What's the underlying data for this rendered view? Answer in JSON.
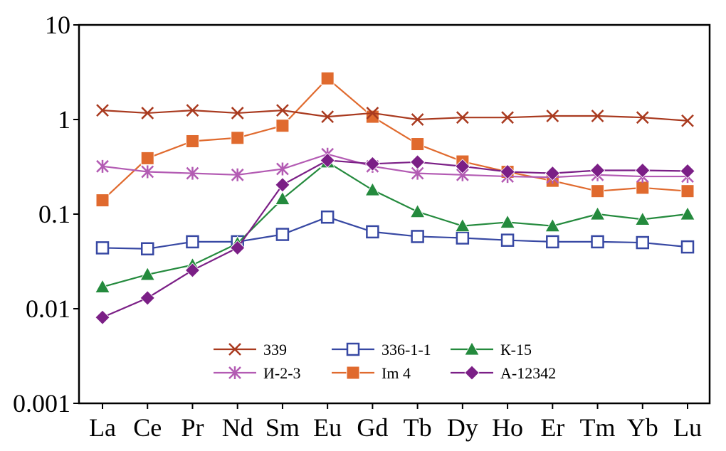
{
  "chart_data": {
    "type": "line",
    "title": "",
    "xlabel": "",
    "ylabel": "",
    "yscale": "log",
    "ylim": [
      0.001,
      10
    ],
    "grid": false,
    "legend_position": "bottom-center",
    "yticks": [
      10,
      1,
      0.1,
      0.01,
      0.001
    ],
    "ytick_labels": [
      "10",
      "1",
      "0.1",
      "0.01",
      "0.001"
    ],
    "categories": [
      "La",
      "Ce",
      "Pr",
      "Nd",
      "Sm",
      "Eu",
      "Gd",
      "Tb",
      "Dy",
      "Ho",
      "Er",
      "Tm",
      "Yb",
      "Lu"
    ],
    "series": [
      {
        "name": "339",
        "marker": "x",
        "color": "#a93a1f",
        "values": [
          1.25,
          1.17,
          1.25,
          1.17,
          1.25,
          1.07,
          1.17,
          1.0,
          1.05,
          1.05,
          1.09,
          1.09,
          1.05,
          0.97
        ]
      },
      {
        "name": "336-1-1",
        "marker": "open-square",
        "color": "#3748a3",
        "values": [
          0.044,
          0.043,
          0.051,
          0.051,
          0.061,
          0.093,
          0.065,
          0.058,
          0.056,
          0.053,
          0.051,
          0.051,
          0.05,
          0.045
        ]
      },
      {
        "name": "К-15",
        "marker": "triangle",
        "color": "#248a3d",
        "values": [
          0.017,
          0.023,
          0.029,
          0.049,
          0.145,
          0.355,
          0.18,
          0.106,
          0.075,
          0.082,
          0.075,
          0.1,
          0.088,
          0.1
        ]
      },
      {
        "name": "И-2-3",
        "marker": "asterisk",
        "color": "#b35bb3",
        "values": [
          0.32,
          0.28,
          0.27,
          0.26,
          0.3,
          0.43,
          0.32,
          0.27,
          0.26,
          0.25,
          0.245,
          0.26,
          0.25,
          0.25
        ]
      },
      {
        "name": "Im 4",
        "marker": "filled-square",
        "color": "#e06a2e",
        "values": [
          0.14,
          0.39,
          0.59,
          0.64,
          0.86,
          2.72,
          1.07,
          0.55,
          0.36,
          0.28,
          0.225,
          0.175,
          0.19,
          0.175
        ]
      },
      {
        "name": "А-12342",
        "marker": "diamond",
        "color": "#7b1f86",
        "values": [
          0.0081,
          0.013,
          0.0255,
          0.044,
          0.204,
          0.37,
          0.34,
          0.355,
          0.32,
          0.28,
          0.27,
          0.29,
          0.29,
          0.285
        ]
      }
    ]
  }
}
